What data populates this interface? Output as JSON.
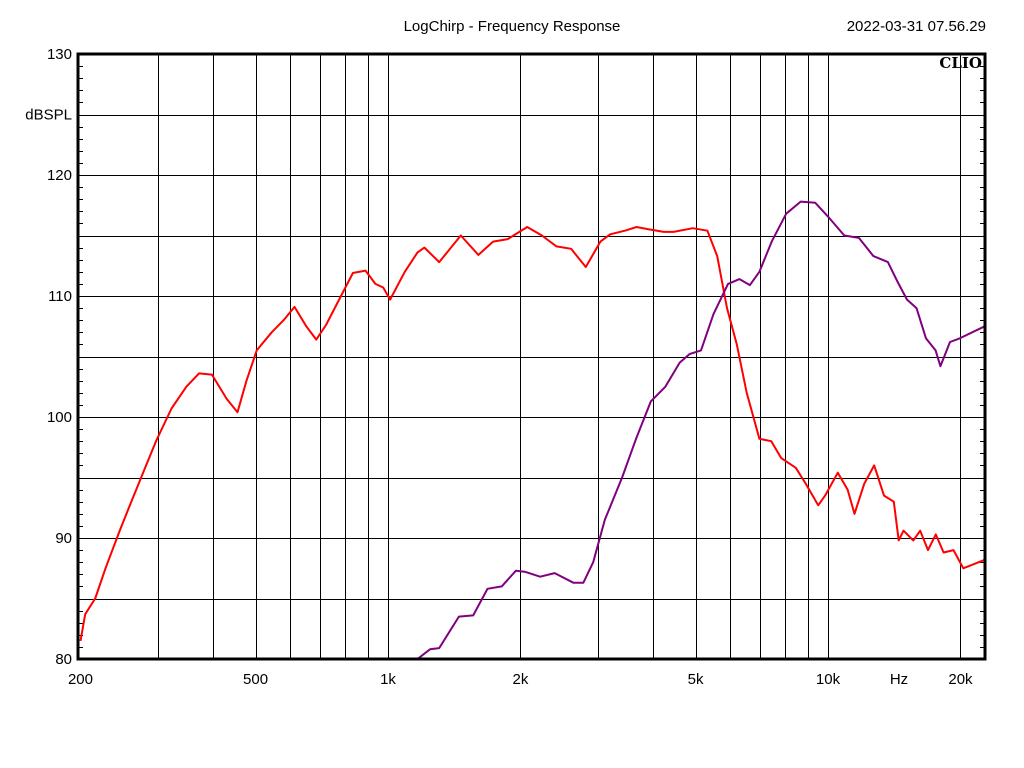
{
  "header": {
    "title": "LogChirp - Frequency Response",
    "timestamp": "2022-03-31 07.56.29",
    "brand": "CLIO"
  },
  "colors": {
    "series_1": "#ff0000",
    "series_2": "#800080",
    "grid": "#000000",
    "background": "#ffffff"
  },
  "chart_data": {
    "type": "line",
    "title": "LogChirp - Frequency Response",
    "xlabel": "Hz",
    "ylabel": "dBSPL",
    "xscale": "log",
    "xlim": [
      200,
      22700
    ],
    "ylim": [
      80,
      130
    ],
    "grid": true,
    "x_ticks": [
      "200",
      "500",
      "1k",
      "2k",
      "5k",
      "10k",
      "Hz",
      "20k"
    ],
    "y_ticks": [
      "130",
      "dBSPL",
      "120",
      "110",
      "100",
      "90",
      "80"
    ],
    "series": [
      {
        "name": "Red trace",
        "color": "#ff0000",
        "points": [
          [
            200,
            81.5
          ],
          [
            205,
            83.7
          ],
          [
            216,
            85
          ],
          [
            228,
            87.5
          ],
          [
            245,
            90.5
          ],
          [
            261,
            93
          ],
          [
            282,
            96
          ],
          [
            297,
            98
          ],
          [
            322,
            100.7
          ],
          [
            348,
            102.5
          ],
          [
            372,
            103.6
          ],
          [
            398,
            103.5
          ],
          [
            430,
            101.5
          ],
          [
            455,
            100.4
          ],
          [
            477,
            103
          ],
          [
            503,
            105.5
          ],
          [
            544,
            107
          ],
          [
            579,
            108
          ],
          [
            613,
            109.1
          ],
          [
            652,
            107.5
          ],
          [
            687,
            106.4
          ],
          [
            723,
            107.6
          ],
          [
            782,
            110
          ],
          [
            832,
            111.9
          ],
          [
            889,
            112.1
          ],
          [
            936,
            111
          ],
          [
            975,
            110.7
          ],
          [
            1011,
            109.7
          ],
          [
            1092,
            112
          ],
          [
            1167,
            113.6
          ],
          [
            1210,
            114
          ],
          [
            1307,
            112.8
          ],
          [
            1412,
            114.3
          ],
          [
            1464,
            115
          ],
          [
            1605,
            113.4
          ],
          [
            1733,
            114.5
          ],
          [
            1871,
            114.7
          ],
          [
            2072,
            115.7
          ],
          [
            2237,
            115
          ],
          [
            2415,
            114.1
          ],
          [
            2607,
            113.9
          ],
          [
            2815,
            112.4
          ],
          [
            3039,
            114.5
          ],
          [
            3199,
            115.1
          ],
          [
            3455,
            115.4
          ],
          [
            3671,
            115.7
          ],
          [
            3922,
            115.5
          ],
          [
            4234,
            115.3
          ],
          [
            4457,
            115.3
          ],
          [
            4928,
            115.6
          ],
          [
            5320,
            115.4
          ],
          [
            5600,
            113.3
          ],
          [
            5896,
            109
          ],
          [
            6206,
            106
          ],
          [
            6534,
            102
          ],
          [
            6769,
            100
          ],
          [
            6983,
            98.2
          ],
          [
            7432,
            98
          ],
          [
            7826,
            96.6
          ],
          [
            8450,
            95.8
          ],
          [
            8899,
            94.5
          ],
          [
            9500,
            92.7
          ],
          [
            9850,
            93.5
          ],
          [
            10525,
            95.4
          ],
          [
            11082,
            94
          ],
          [
            11490,
            92
          ],
          [
            12094,
            94.5
          ],
          [
            12735,
            96
          ],
          [
            13405,
            93.5
          ],
          [
            14114,
            93
          ],
          [
            14476,
            89.8
          ],
          [
            14846,
            90.6
          ],
          [
            15627,
            89.8
          ],
          [
            16199,
            90.6
          ],
          [
            16876,
            89
          ],
          [
            17580,
            90.3
          ],
          [
            18316,
            88.8
          ],
          [
            19282,
            89
          ],
          [
            20296,
            87.5
          ],
          [
            22700,
            88.2
          ]
        ]
      },
      {
        "name": "Purple trace",
        "color": "#800080",
        "points": [
          [
            1167,
            80
          ],
          [
            1246,
            80.8
          ],
          [
            1307,
            80.9
          ],
          [
            1449,
            83.5
          ],
          [
            1562,
            83.6
          ],
          [
            1683,
            85.8
          ],
          [
            1813,
            86
          ],
          [
            1953,
            87.3
          ],
          [
            2053,
            87.2
          ],
          [
            2216,
            86.8
          ],
          [
            2392,
            87.1
          ],
          [
            2640,
            86.3
          ],
          [
            2779,
            86.3
          ],
          [
            2927,
            88
          ],
          [
            3109,
            91.5
          ],
          [
            3404,
            95
          ],
          [
            3671,
            98.3
          ],
          [
            3959,
            101.3
          ],
          [
            4267,
            102.5
          ],
          [
            4602,
            104.5
          ],
          [
            4844,
            105.2
          ],
          [
            5145,
            105.5
          ],
          [
            5492,
            108.5
          ],
          [
            5925,
            111
          ],
          [
            6293,
            111.4
          ],
          [
            6644,
            110.9
          ],
          [
            6983,
            112
          ],
          [
            7447,
            114.5
          ],
          [
            8036,
            116.8
          ],
          [
            8669,
            117.8
          ],
          [
            9355,
            117.7
          ],
          [
            10094,
            116.4
          ],
          [
            10891,
            115
          ],
          [
            11753,
            114.8
          ],
          [
            12681,
            113.3
          ],
          [
            13683,
            112.8
          ],
          [
            14382,
            111.2
          ],
          [
            15120,
            109.7
          ],
          [
            15891,
            109
          ],
          [
            16704,
            106.5
          ],
          [
            17558,
            105.5
          ],
          [
            18007,
            104.2
          ],
          [
            18940,
            106.2
          ],
          [
            19910,
            106.5
          ],
          [
            22700,
            107.5
          ]
        ]
      }
    ]
  }
}
